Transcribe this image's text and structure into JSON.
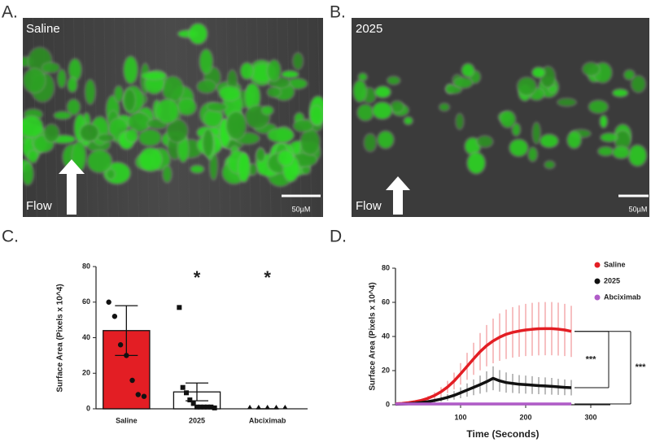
{
  "panel_labels": [
    "A.",
    "B.",
    "C.",
    "D."
  ],
  "images": [
    {
      "label": "Saline",
      "flow": "Flow",
      "scale": "50µM"
    },
    {
      "label": "2025",
      "flow": "Flow",
      "scale": "50µM"
    }
  ],
  "chart_data": [
    {
      "type": "bar",
      "ylabel": "Surface Area (Pixels x 10^4)",
      "categories": [
        "Saline",
        "2025",
        "Abciximab"
      ],
      "values": [
        44,
        9.5,
        0
      ],
      "errors": [
        14,
        5,
        0
      ],
      "colors": [
        "#e31e24",
        "#ffffff",
        "#ffffff"
      ],
      "markers": [
        "circle",
        "square",
        "triangle"
      ],
      "points": [
        [
          60,
          52,
          36,
          30,
          16,
          8,
          7
        ],
        [
          57,
          12,
          9,
          5,
          3,
          1,
          1,
          1,
          1,
          1,
          0.5
        ],
        [
          0,
          0,
          0,
          0,
          0
        ]
      ],
      "significance": [
        null,
        "*",
        "*"
      ],
      "ylim": [
        0,
        80
      ],
      "yticks": [
        0,
        20,
        40,
        60,
        80
      ]
    },
    {
      "type": "line",
      "xlabel": "Time (Seconds)",
      "ylabel": "Surface Area (Pixels x 10^4)",
      "x": [
        0,
        10,
        20,
        30,
        40,
        50,
        60,
        70,
        80,
        90,
        100,
        110,
        120,
        130,
        140,
        150,
        160,
        170,
        180,
        190,
        200,
        210,
        220,
        230,
        240,
        250,
        260,
        270
      ],
      "series": [
        {
          "name": "Saline",
          "color": "#e31e24",
          "values": [
            0.6,
            0.8,
            1.2,
            1.8,
            2.6,
            3.8,
            5.4,
            7.6,
            10.4,
            13.9,
            18.1,
            22.5,
            26.9,
            31.1,
            34.6,
            37.4,
            39.6,
            41.3,
            42.4,
            43.2,
            43.8,
            44.2,
            44.5,
            44.6,
            44.6,
            44.3,
            43.8,
            43.0
          ],
          "errors": [
            0.2,
            0.3,
            0.4,
            0.6,
            0.9,
            1.3,
            1.9,
            2.7,
            3.6,
            4.9,
            6.3,
            7.9,
            9.4,
            10.9,
            12.1,
            13.1,
            13.9,
            14.5,
            14.8,
            15.1,
            15.3,
            15.5,
            15.6,
            15.6,
            15.6,
            15.5,
            15.3,
            15.0
          ]
        },
        {
          "name": "2025",
          "color": "#111111",
          "values": [
            0.3,
            0.4,
            0.6,
            0.9,
            1.3,
            1.8,
            2.5,
            3.3,
            4.3,
            5.5,
            7.0,
            8.6,
            10.2,
            11.8,
            13.5,
            15.5,
            14.0,
            13.0,
            12.5,
            12.0,
            11.8,
            11.5,
            11.2,
            11.0,
            10.8,
            10.5,
            10.2,
            10.0
          ],
          "errors": [
            0.1,
            0.2,
            0.3,
            0.4,
            0.6,
            0.8,
            1.1,
            1.5,
            1.9,
            2.5,
            3.2,
            3.9,
            4.6,
            5.3,
            6.1,
            7.0,
            6.3,
            5.9,
            5.6,
            5.4,
            5.3,
            5.2,
            5.0,
            5.0,
            4.9,
            4.7,
            4.6,
            4.5
          ]
        },
        {
          "name": "Abciximab",
          "color": "#b05cc8",
          "values": [
            0.5,
            0.5,
            0.5,
            0.5,
            0.5,
            0.5,
            0.5,
            0.5,
            0.5,
            0.5,
            0.5,
            0.5,
            0.5,
            0.5,
            0.5,
            0.5,
            0.5,
            0.5,
            0.5,
            0.5,
            0.5,
            0.5,
            0.5,
            0.5,
            0.5,
            0.5,
            0.5,
            0.5
          ],
          "errors": [
            0.3,
            0.3,
            0.3,
            0.3,
            0.3,
            0.3,
            0.3,
            0.3,
            0.3,
            0.3,
            0.3,
            0.3,
            0.3,
            0.3,
            0.3,
            0.3,
            0.3,
            0.3,
            0.3,
            0.3,
            0.3,
            0.3,
            0.3,
            0.3,
            0.3,
            0.3,
            0.3,
            0.3
          ]
        }
      ],
      "significance": [
        "***",
        "***"
      ],
      "xlim": [
        0,
        330
      ],
      "xticks": [
        100,
        200,
        300
      ],
      "ylim": [
        0,
        80
      ],
      "yticks": [
        0,
        20,
        40,
        60,
        80
      ],
      "legend": "top-right"
    }
  ]
}
